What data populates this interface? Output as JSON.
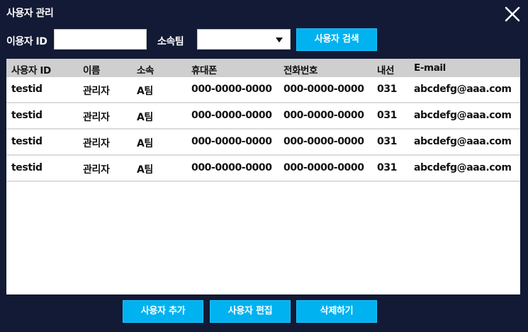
{
  "window": {
    "title": "사용자 관리",
    "close_icon": "close-x-icon"
  },
  "filters": {
    "user_id_label": "이용자 ID",
    "user_id_value": "",
    "team_label": "소속팀",
    "team_value": "",
    "search_button": "사용자 검색"
  },
  "table": {
    "headers": [
      "사용자 ID",
      "이름",
      "소속",
      "휴대폰",
      "전화번호",
      "내선",
      "E-mail"
    ],
    "rows": [
      [
        "testid",
        "관리자",
        "A팀",
        "000-0000-0000",
        "000-0000-0000",
        "031",
        "abcdefg@aaa.com"
      ],
      [
        "testid",
        "관리자",
        "A팀",
        "000-0000-0000",
        "000-0000-0000",
        "031",
        "abcdefg@aaa.com"
      ],
      [
        "testid",
        "관리자",
        "A팀",
        "000-0000-0000",
        "000-0000-0000",
        "031",
        "abcdefg@aaa.com"
      ],
      [
        "testid",
        "관리자",
        "A팀",
        "000-0000-0000",
        "000-0000-0000",
        "031",
        "abcdefg@aaa.com"
      ]
    ]
  },
  "actions": {
    "add": "사용자 추가",
    "edit": "사용자 편집",
    "delete": "삭제하기"
  },
  "colors": {
    "background": "#131a35",
    "accent": "#00b2f0",
    "header_bg": "#cfcfcf"
  }
}
